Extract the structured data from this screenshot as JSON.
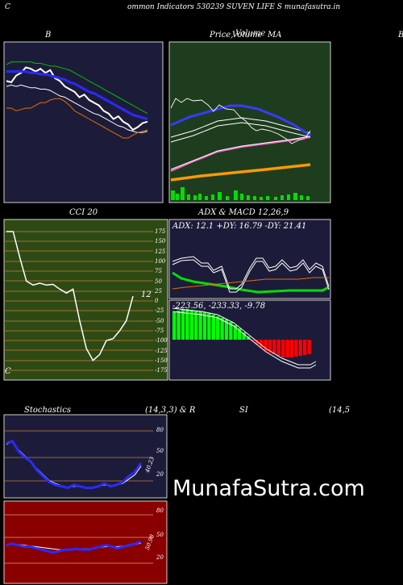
{
  "header": {
    "left_letter": "C",
    "title": "ommon  Indicators 530239 SUVEN  LIFE S munafasutra.in"
  },
  "panels": {
    "bollinger": {
      "label": "B"
    },
    "price": {
      "label_a": "Price,",
      "label_b": "Volume",
      "label_c": "MA",
      "overlap": "Volume"
    },
    "cci": {
      "label": "CCI 20",
      "value_label": "12",
      "ticks": [
        "175",
        "150",
        "125",
        "100",
        "75",
        "50",
        "25",
        "0",
        "-25",
        "-50",
        "-75",
        "-100",
        "-125",
        "-150",
        "-175"
      ]
    },
    "adx": {
      "label": "ADX  & MACD 12,26,9",
      "readout": "ADX: 12.1 +DY: 16.79 -DY: 21.41"
    },
    "macd": {
      "readout": "-223.56, -233.33,  -9.78"
    },
    "stoch": {
      "label_a": "Stochastics",
      "label_b": "(14,3,3) & R",
      "value_label": "40.23",
      "ticks": [
        "80",
        "50",
        "20"
      ]
    },
    "rsi": {
      "label_a": "SI",
      "label_b": "(14,5",
      "value_label": "50.98",
      "ticks": [
        "80",
        "50",
        "20"
      ]
    },
    "right_edge_letter": "B"
  },
  "brand": "MunafaSutra.com",
  "colors": {
    "navy_bg": "#1c1c3a",
    "green_bg": "#1e3d1e",
    "olive_bg": "#2e4a14",
    "red_bg": "#8a0000",
    "grid_brown": "#a0522d",
    "band_green": "#00c000",
    "band_blue": "#2a2aff",
    "band_orange": "#e07000",
    "line_white": "#ffffff",
    "volume_green": "#00dd00",
    "macd_green": "#00ff00",
    "macd_red": "#ff0000"
  },
  "chart_data": [
    {
      "type": "line",
      "title": "B",
      "series": [
        {
          "values": [
            86,
            85,
            90,
            92,
            96,
            95,
            93,
            95,
            92,
            94,
            88,
            86,
            82,
            80,
            78,
            74,
            76,
            72,
            70,
            68,
            64,
            62,
            58,
            60,
            56,
            54,
            50,
            52,
            55,
            56
          ]
        },
        {
          "values": [
            93,
            93,
            93,
            93,
            93,
            92,
            92,
            91,
            91,
            90,
            89,
            88,
            87,
            85,
            84,
            82,
            80,
            78,
            77,
            75,
            73,
            71,
            69,
            67,
            65,
            63,
            61,
            60,
            59,
            58
          ]
        },
        {
          "values": [
            98,
            100,
            100,
            100,
            100,
            100,
            99,
            99,
            98,
            97,
            97,
            96,
            95,
            94,
            92,
            90,
            88,
            86,
            84,
            82,
            80,
            78,
            76,
            74,
            72,
            70,
            68,
            66,
            64,
            62
          ]
        },
        {
          "values": [
            82,
            83,
            82,
            83,
            82,
            81,
            81,
            80,
            80,
            79,
            77,
            75,
            74,
            72,
            70,
            68,
            66,
            64,
            62,
            61,
            59,
            57,
            55,
            53,
            52,
            50,
            49,
            48,
            48,
            49
          ]
        },
        {
          "values": [
            66,
            66,
            64,
            65,
            66,
            66,
            68,
            70,
            70,
            72,
            73,
            73,
            71,
            68,
            64,
            62,
            60,
            58,
            56,
            54,
            52,
            50,
            48,
            46,
            44,
            44,
            46,
            48,
            49,
            50
          ]
        }
      ]
    },
    {
      "type": "line",
      "title": "CCI 20",
      "ylim": [
        -175,
        175
      ],
      "series": [
        {
          "values": [
            175,
            175,
            110,
            50,
            40,
            45,
            40,
            42,
            30,
            20,
            30,
            -50,
            -120,
            -150,
            -135,
            -100,
            -95,
            -75,
            -50,
            12
          ]
        }
      ]
    },
    {
      "type": "line",
      "title": "ADX  & MACD 12,26,9",
      "series": [
        {
          "name": "ADX",
          "values": [
            12.1
          ]
        },
        {
          "name": "+DY",
          "values": [
            16.79
          ]
        },
        {
          "name": "-DY",
          "values": [
            21.41
          ]
        }
      ]
    },
    {
      "type": "bar",
      "title": "MACD",
      "series": [
        {
          "values": [
            -223.56
          ]
        },
        {
          "values": [
            -233.33
          ]
        },
        {
          "values": [
            -9.78
          ]
        }
      ]
    },
    {
      "type": "line",
      "title": "Stochastics (14,3,3)",
      "ylim": [
        0,
        100
      ],
      "series": [
        {
          "values": [
            68,
            70,
            56,
            48,
            42,
            30,
            22,
            14,
            10,
            8,
            6,
            10,
            8,
            6,
            6,
            8,
            12,
            8,
            10,
            14,
            22,
            28,
            40
          ]
        },
        {
          "values": [
            66,
            70,
            58,
            50,
            42,
            32,
            24,
            16,
            12,
            9,
            7,
            8,
            8,
            6,
            6,
            8,
            10,
            9,
            10,
            12,
            18,
            24,
            36
          ]
        }
      ]
    },
    {
      "type": "line",
      "title": "RSI (14)",
      "ylim": [
        0,
        100
      ],
      "series": [
        {
          "values": [
            46,
            48,
            46,
            44,
            44,
            42,
            40,
            38,
            36,
            38,
            40,
            40,
            41,
            40,
            40,
            42,
            44,
            46,
            44,
            42,
            44,
            46,
            48,
            51
          ]
        },
        {
          "values": [
            46,
            47,
            47,
            46,
            45,
            44,
            43,
            42,
            41,
            40,
            40,
            40,
            41,
            41,
            41,
            42,
            43,
            44,
            44,
            44,
            45,
            46,
            47,
            49
          ]
        }
      ]
    }
  ]
}
